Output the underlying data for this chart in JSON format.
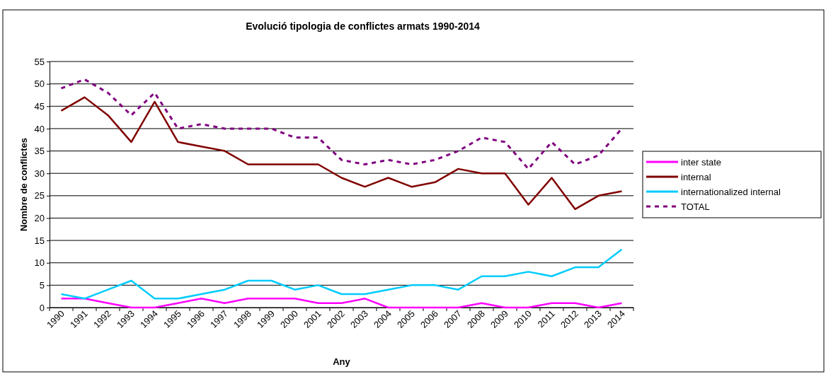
{
  "chart_data": {
    "type": "line",
    "title": "Evolució tipologia de conflictes armats 1990-2014",
    "xlabel": "Any",
    "ylabel": "Nombre de conflictes",
    "categories": [
      "1990",
      "1991",
      "1992",
      "1993",
      "1994",
      "1995",
      "1996",
      "1997",
      "1998",
      "1999",
      "2000",
      "2001",
      "2002",
      "2003",
      "2004",
      "2005",
      "2006",
      "2007",
      "2008",
      "2009",
      "2010",
      "2011",
      "2012",
      "2013",
      "2014"
    ],
    "series": [
      {
        "name": "inter state",
        "color": "#ff00ff",
        "values": [
          2,
          2,
          1,
          0,
          0,
          1,
          2,
          1,
          2,
          2,
          2,
          1,
          1,
          2,
          0,
          0,
          0,
          0,
          1,
          0,
          0,
          1,
          1,
          0,
          1
        ]
      },
      {
        "name": "internal",
        "color": "#800000",
        "values": [
          44,
          47,
          43,
          37,
          46,
          37,
          36,
          35,
          32,
          32,
          32,
          32,
          29,
          27,
          29,
          27,
          28,
          31,
          30,
          30,
          23,
          29,
          22,
          25,
          26
        ]
      },
      {
        "name": "internationalized internal",
        "color": "#00ccff",
        "values": [
          3,
          2,
          4,
          6,
          2,
          2,
          3,
          4,
          6,
          6,
          4,
          5,
          3,
          3,
          4,
          5,
          5,
          4,
          7,
          7,
          8,
          7,
          9,
          9,
          13
        ]
      },
      {
        "name": "TOTAL",
        "color": "#800080",
        "line_style": "dashed",
        "values": [
          49,
          51,
          48,
          43,
          48,
          40,
          41,
          40,
          40,
          40,
          38,
          38,
          33,
          32,
          33,
          32,
          33,
          35,
          38,
          37,
          31,
          37,
          32,
          34,
          40
        ]
      }
    ],
    "ylim": [
      0,
      55
    ],
    "yticks": [
      0,
      5,
      10,
      15,
      20,
      25,
      30,
      35,
      40,
      45,
      50,
      55
    ],
    "grid": "y",
    "legend": "right",
    "marker": "none",
    "line_style": "solid"
  }
}
